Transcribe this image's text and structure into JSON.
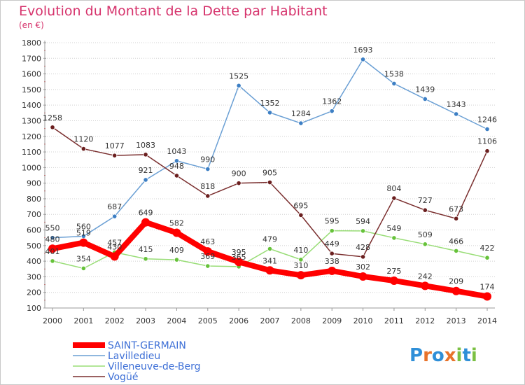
{
  "chart_data": {
    "type": "line",
    "title": "Evolution du Montant de la Dette par Habitant",
    "subtitle": "(en €)",
    "xlabel": "",
    "ylabel": "",
    "x": [
      "2000",
      "2001",
      "2002",
      "2003",
      "2004",
      "2005",
      "2006",
      "2007",
      "2008",
      "2009",
      "2010",
      "2011",
      "2012",
      "2013",
      "2014"
    ],
    "ylim": [
      100,
      1800
    ],
    "yticks": [
      100,
      200,
      300,
      400,
      500,
      600,
      700,
      800,
      900,
      1000,
      1100,
      1200,
      1300,
      1400,
      1500,
      1600,
      1700,
      1800
    ],
    "grid": "horizontal dotted",
    "legend_position": "bottom-left",
    "series": [
      {
        "name": "Lavilledieu",
        "color": "#6a9fd4",
        "marker": "#3d7fc4",
        "values": [
          550,
          560,
          687,
          921,
          1043,
          990,
          1525,
          1352,
          1284,
          1362,
          1693,
          1538,
          1439,
          1343,
          1246
        ],
        "labels": [
          "550",
          "560",
          "687",
          "921",
          "1043",
          "990",
          "1525",
          "1352",
          "1284",
          "1362",
          "1693",
          "1538",
          "1439",
          "1343",
          "1246"
        ]
      },
      {
        "name": "Villeneuve-de-Berg",
        "color": "#99dd77",
        "marker": "#66c23a",
        "values": [
          401,
          354,
          457,
          415,
          409,
          369,
          365,
          479,
          410,
          595,
          594,
          549,
          509,
          466,
          422
        ],
        "labels": [
          "401",
          "354",
          "457",
          "415",
          "409",
          "369",
          "365",
          "479",
          "410",
          "595",
          "594",
          "549",
          "509",
          "466",
          "422"
        ]
      },
      {
        "name": "Vogüé",
        "color": "#7a2e2e",
        "marker": "#6b1f1f",
        "values": [
          1258,
          1120,
          1077,
          1083,
          948,
          818,
          900,
          905,
          695,
          449,
          428,
          804,
          727,
          673,
          1106
        ],
        "labels": [
          "1258",
          "1120",
          "1077",
          "1083",
          "948",
          "818",
          "900",
          "905",
          "695",
          "449",
          "428",
          "804",
          "727",
          "673",
          "1106"
        ]
      },
      {
        "name": "SAINT-GERMAIN",
        "color": "#ff0000",
        "marker": "#ff0000",
        "values": [
          480,
          519,
          430,
          649,
          582,
          463,
          395,
          341,
          310,
          338,
          302,
          275,
          242,
          209,
          174
        ],
        "labels": [
          "480",
          "519",
          "430",
          "649",
          "582",
          "463",
          "395",
          "341",
          "310",
          "338",
          "302",
          "275",
          "242",
          "209",
          "174"
        ]
      }
    ],
    "legend": [
      "SAINT-GERMAIN",
      "Lavilledieu",
      "Villeneuve-de-Berg",
      "Vogüé"
    ]
  },
  "logo": {
    "text": "Proxiti",
    "letters": [
      "P",
      "r",
      "o",
      "x",
      "i",
      "t",
      "i"
    ],
    "colors": [
      "#2f8fd8",
      "#e8732b",
      "#2f8fd8",
      "#e8732b",
      "#7bc043",
      "#2f8fd8",
      "#7bc043"
    ]
  }
}
